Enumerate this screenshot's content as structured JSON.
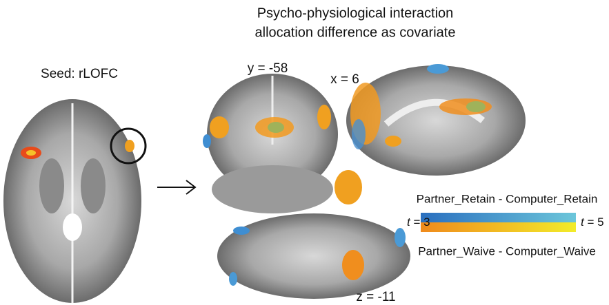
{
  "title_lines": [
    "Psycho-physiological interaction",
    "allocation difference as covariate"
  ],
  "seed_label": "Seed: rLOFC",
  "slice_labels": {
    "coronal": "y = -58",
    "sagittal": "x = 6",
    "axial": "z = -11"
  },
  "colorbar": {
    "top_label": "Partner_Retain - Computer_Retain",
    "bottom_label": "Partner_Waive - Computer_Waive",
    "variable": "t",
    "min_label": "= 3",
    "max_label": "= 5"
  }
}
